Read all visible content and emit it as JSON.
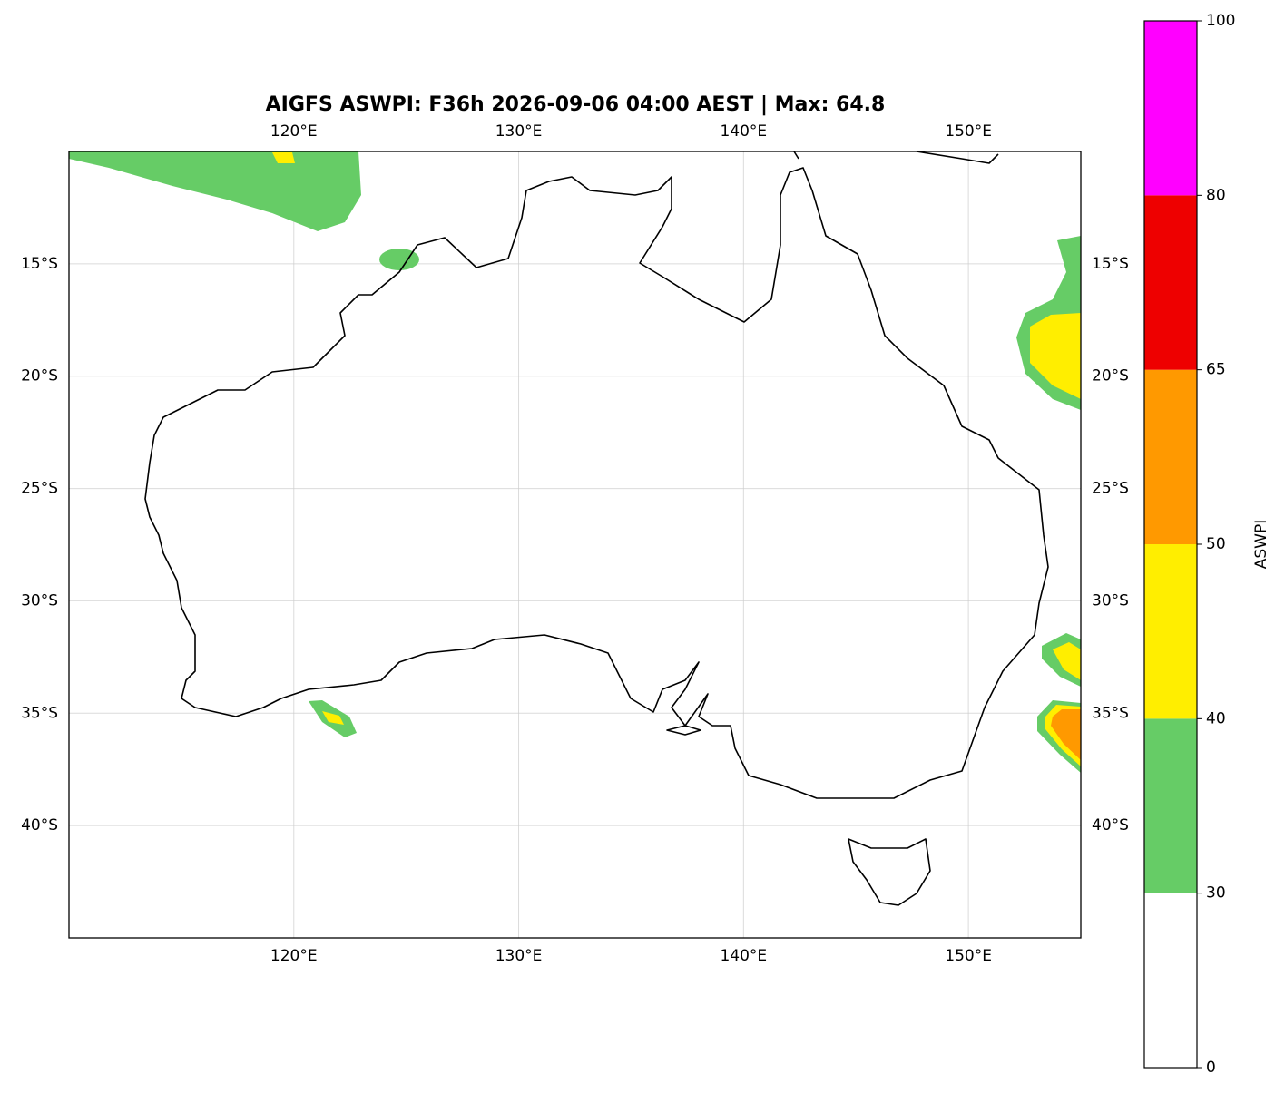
{
  "chart_data": {
    "type": "map",
    "title": "AIGFS ASWPI: F36h 2026-09-06 04:00 AEST | Max: 64.8",
    "xlim": [
      110,
      155
    ],
    "ylim": [
      -45,
      -10
    ],
    "xticks": [
      {
        "value": 120,
        "label": "120°E"
      },
      {
        "value": 130,
        "label": "130°E"
      },
      {
        "value": 140,
        "label": "140°E"
      },
      {
        "value": 150,
        "label": "150°E"
      }
    ],
    "yticks": [
      {
        "value": -15,
        "label": "15°S"
      },
      {
        "value": -20,
        "label": "20°S"
      },
      {
        "value": -25,
        "label": "25°S"
      },
      {
        "value": -30,
        "label": "30°S"
      },
      {
        "value": -35,
        "label": "35°S"
      },
      {
        "value": -40,
        "label": "40°S"
      }
    ],
    "grid": true,
    "colorbar": {
      "label": "ASWPI",
      "ticks": [
        0,
        30,
        40,
        50,
        65,
        80,
        100
      ],
      "colors": [
        "#ffffff",
        "#66cc66",
        "#ffee00",
        "#ff9900",
        "#ee0000",
        "#ff00ff"
      ]
    }
  }
}
